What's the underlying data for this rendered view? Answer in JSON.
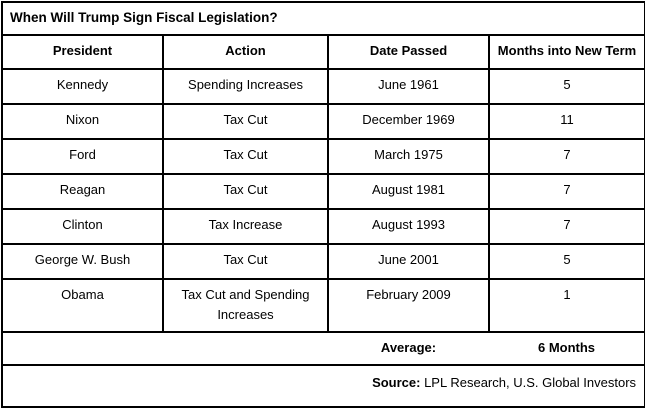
{
  "title": "When Will Trump Sign Fiscal Legislation?",
  "table": {
    "headers": [
      "President",
      "Action",
      "Date Passed",
      "Months into New Term"
    ],
    "rows": [
      {
        "president": "Kennedy",
        "action": "Spending Increases",
        "date": "June 1961",
        "months": "5"
      },
      {
        "president": "Nixon",
        "action": "Tax Cut",
        "date": "December 1969",
        "months": "11"
      },
      {
        "president": "Ford",
        "action": "Tax Cut",
        "date": "March 1975",
        "months": "7"
      },
      {
        "president": "Reagan",
        "action": "Tax Cut",
        "date": "August 1981",
        "months": "7"
      },
      {
        "president": "Clinton",
        "action": "Tax Increase",
        "date": "August 1993",
        "months": "7"
      },
      {
        "president": "George W. Bush",
        "action": "Tax Cut",
        "date": "June 2001",
        "months": "5"
      },
      {
        "president": "Obama",
        "action": "Tax Cut and Spending Increases",
        "date": "February 2009",
        "months": "1"
      }
    ],
    "average_label": "Average:",
    "average_value": "6 Months"
  },
  "source": {
    "label": "Source:",
    "text": " LPL Research, U.S. Global Investors"
  },
  "colors": {
    "border": "#000000",
    "text": "#000000",
    "background": "#ffffff"
  },
  "chart_data": {
    "type": "table",
    "title": "When Will Trump Sign Fiscal Legislation?",
    "columns": [
      "President",
      "Action",
      "Date Passed",
      "Months into New Term"
    ],
    "rows": [
      [
        "Kennedy",
        "Spending Increases",
        "June 1961",
        5
      ],
      [
        "Nixon",
        "Tax Cut",
        "December 1969",
        11
      ],
      [
        "Ford",
        "Tax Cut",
        "March 1975",
        7
      ],
      [
        "Reagan",
        "Tax Cut",
        "August 1981",
        7
      ],
      [
        "Clinton",
        "Tax Increase",
        "August 1993",
        7
      ],
      [
        "George W. Bush",
        "Tax Cut",
        "June 2001",
        5
      ],
      [
        "Obama",
        "Tax Cut and Spending Increases",
        "February 2009",
        1
      ]
    ],
    "average_months": 6,
    "source": "LPL Research, U.S. Global Investors",
    "layout_hints": "black 2px gridlines, white background, bold header row, average row has no internal vertical borders, source row right-aligned"
  }
}
